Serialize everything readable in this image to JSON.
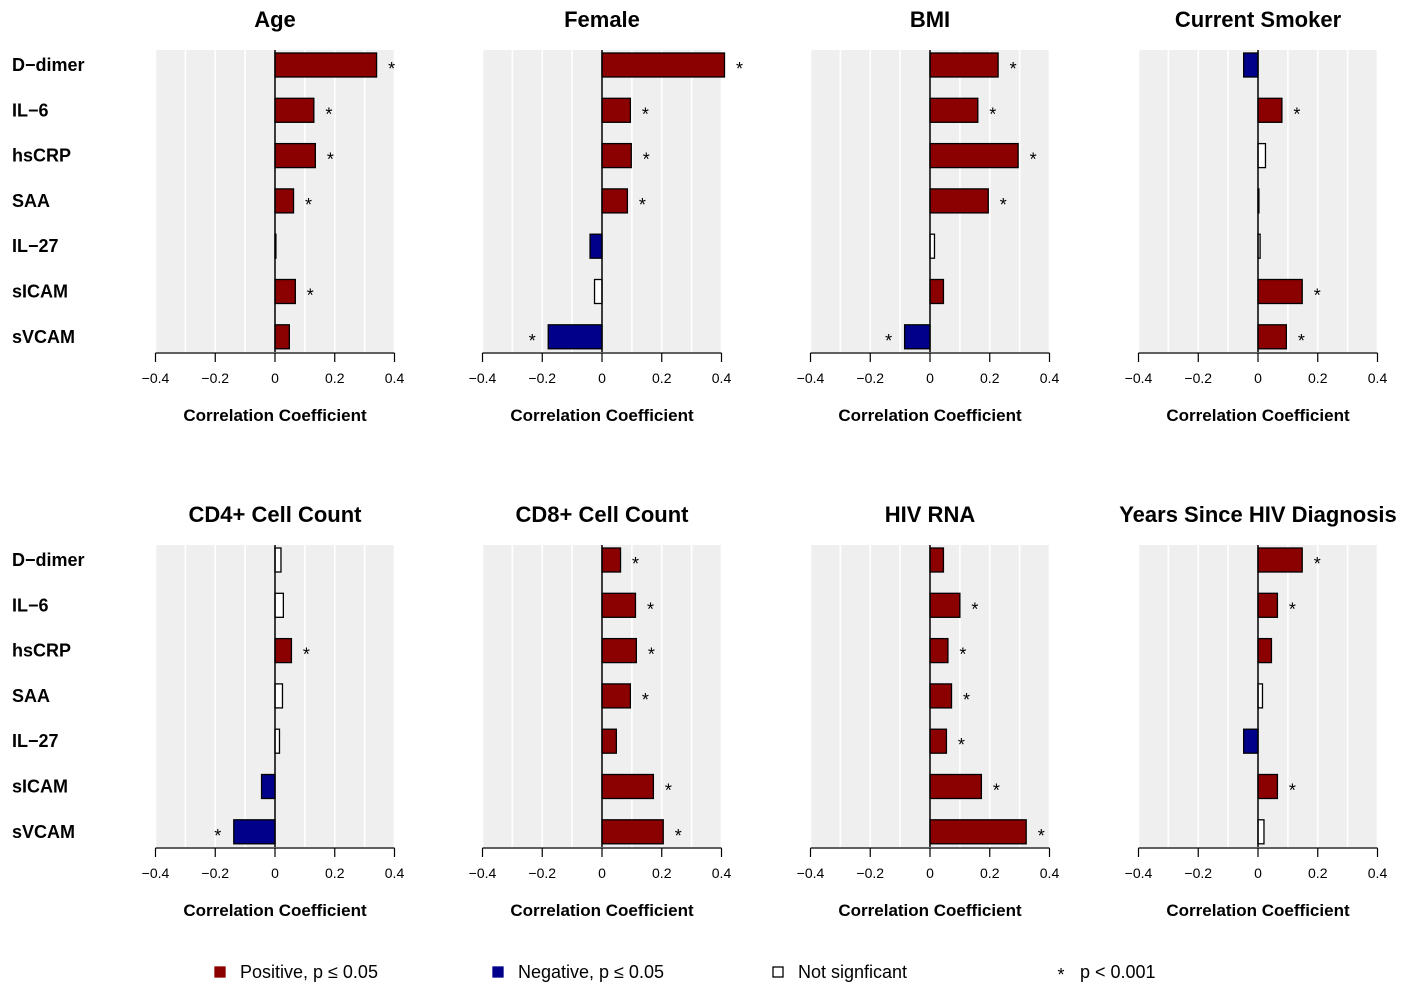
{
  "chart_data": {
    "type": "bar",
    "orientation": "horizontal",
    "categories": [
      "D−dimer",
      "IL−6",
      "hsCRP",
      "SAA",
      "IL−27",
      "sICAM",
      "sVCAM"
    ],
    "xlabel": "Correlation Coefficient",
    "xlim": [
      -0.4,
      0.4
    ],
    "xticks": [
      "−0.4",
      "−0.2",
      "0",
      "0.2",
      "0.4"
    ],
    "colors": {
      "positive": "#8b0000",
      "negative": "#00008b",
      "ns": "#ffffff",
      "panel_bg": "#efefef"
    },
    "panels": [
      {
        "title": "Age",
        "values": [
          0.34,
          0.13,
          0.135,
          0.062,
          0.003,
          0.068,
          0.048
        ],
        "sig": [
          "pos",
          "pos",
          "pos",
          "pos",
          "ns",
          "pos",
          "pos"
        ],
        "star": [
          true,
          true,
          true,
          true,
          false,
          true,
          false
        ]
      },
      {
        "title": "Female",
        "values": [
          0.41,
          0.095,
          0.098,
          0.085,
          -0.04,
          -0.025,
          -0.18
        ],
        "sig": [
          "pos",
          "pos",
          "pos",
          "pos",
          "neg",
          "ns",
          "neg"
        ],
        "star": [
          true,
          true,
          true,
          true,
          false,
          false,
          true
        ]
      },
      {
        "title": "BMI",
        "values": [
          0.228,
          0.16,
          0.295,
          0.195,
          0.015,
          0.045,
          -0.085
        ],
        "sig": [
          "pos",
          "pos",
          "pos",
          "pos",
          "ns",
          "pos",
          "neg"
        ],
        "star": [
          true,
          true,
          true,
          true,
          false,
          false,
          true
        ]
      },
      {
        "title": "Current Smoker",
        "values": [
          -0.048,
          0.08,
          0.025,
          0.003,
          0.007,
          0.148,
          0.095
        ],
        "sig": [
          "neg",
          "pos",
          "ns",
          "ns",
          "ns",
          "pos",
          "pos"
        ],
        "star": [
          false,
          true,
          false,
          false,
          false,
          true,
          true
        ]
      },
      {
        "title": "CD4+ Cell Count",
        "values": [
          0.02,
          0.028,
          0.055,
          0.025,
          0.015,
          -0.045,
          -0.138
        ],
        "sig": [
          "ns",
          "ns",
          "pos",
          "ns",
          "ns",
          "neg",
          "neg"
        ],
        "star": [
          false,
          false,
          true,
          false,
          false,
          false,
          true
        ]
      },
      {
        "title": "CD8+ Cell Count",
        "values": [
          0.062,
          0.112,
          0.115,
          0.095,
          0.048,
          0.172,
          0.205
        ],
        "sig": [
          "pos",
          "pos",
          "pos",
          "pos",
          "pos",
          "pos",
          "pos"
        ],
        "star": [
          true,
          true,
          true,
          true,
          false,
          true,
          true
        ]
      },
      {
        "title": "HIV RNA",
        "values": [
          0.045,
          0.1,
          0.06,
          0.072,
          0.055,
          0.172,
          0.322
        ],
        "sig": [
          "pos",
          "pos",
          "pos",
          "pos",
          "pos",
          "pos",
          "pos"
        ],
        "star": [
          false,
          true,
          true,
          true,
          true,
          true,
          true
        ]
      },
      {
        "title": "Years Since HIV Diagnosis",
        "values": [
          0.148,
          0.065,
          0.045,
          0.015,
          -0.048,
          0.065,
          0.02
        ],
        "sig": [
          "pos",
          "pos",
          "pos",
          "ns",
          "neg",
          "pos",
          "ns"
        ],
        "star": [
          true,
          true,
          false,
          false,
          false,
          true,
          false
        ]
      }
    ],
    "legend": [
      {
        "key": "pos",
        "label": "Positive, p ≤  0.05"
      },
      {
        "key": "neg",
        "label": "Negative, p ≤  0.05"
      },
      {
        "key": "ns",
        "label": "Not signficant"
      },
      {
        "key": "star",
        "label": "p < 0.001"
      }
    ],
    "legend_position": "bottom",
    "star_symbol": "*"
  }
}
